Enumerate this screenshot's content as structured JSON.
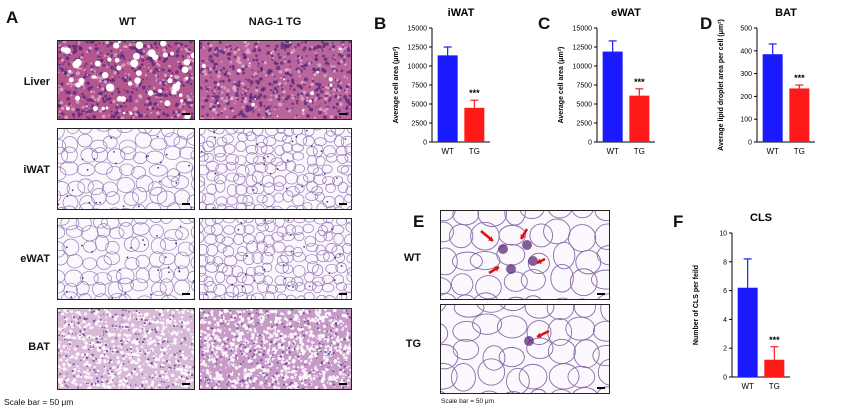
{
  "panel_a": {
    "letter": "A",
    "columns": [
      "WT",
      "NAG-1 TG"
    ],
    "rows": [
      {
        "label": "Liver",
        "tissue": "liver"
      },
      {
        "label": "iWAT",
        "tissue": "adipose"
      },
      {
        "label": "eWAT",
        "tissue": "adipose"
      },
      {
        "label": "BAT",
        "tissue": "bat"
      }
    ],
    "scale_note": "Scale bar = 50 μm"
  },
  "panel_e": {
    "letter": "E",
    "rows": [
      "WT",
      "TG"
    ],
    "scale_note": "Scale bar = 50 μm"
  },
  "colors": {
    "wt": "#1a1aff",
    "tg": "#ff1a1a",
    "stain_bg": "#f4eef8",
    "stain_line": "#9a7ab8"
  },
  "chart_data": [
    {
      "letter": "B",
      "type": "bar",
      "title": "iWAT",
      "categories": [
        "WT",
        "TG"
      ],
      "values": [
        11400,
        4500
      ],
      "errors": [
        1100,
        1000
      ],
      "ylabel": "Average cell area (μm²)",
      "ylim": [
        0,
        15000
      ],
      "yticks": [
        0,
        2500,
        5000,
        7500,
        10000,
        12500,
        15000
      ],
      "annotations": [
        {
          "category": "TG",
          "text": "***"
        }
      ]
    },
    {
      "letter": "C",
      "type": "bar",
      "title": "eWAT",
      "categories": [
        "WT",
        "TG"
      ],
      "values": [
        11900,
        6100
      ],
      "errors": [
        1400,
        900
      ],
      "ylabel": "Average cell area (μm²)",
      "ylim": [
        0,
        15000
      ],
      "yticks": [
        0,
        2500,
        5000,
        7500,
        10000,
        12500,
        15000
      ],
      "annotations": [
        {
          "category": "TG",
          "text": "***"
        }
      ]
    },
    {
      "letter": "D",
      "type": "bar",
      "title": "BAT",
      "categories": [
        "WT",
        "TG"
      ],
      "values": [
        385,
        235
      ],
      "errors": [
        45,
        15
      ],
      "ylabel": "Average lipid droplet area per cell (μm²)",
      "ylim": [
        0,
        500
      ],
      "yticks": [
        0,
        100,
        200,
        300,
        400,
        500
      ],
      "annotations": [
        {
          "category": "TG",
          "text": "***"
        }
      ]
    },
    {
      "letter": "F",
      "type": "bar",
      "title": "CLS",
      "categories": [
        "WT",
        "TG"
      ],
      "values": [
        6.2,
        1.2
      ],
      "errors": [
        2.0,
        0.9
      ],
      "ylabel": "Number of CLS per feild",
      "ylim": [
        0,
        10
      ],
      "yticks": [
        0,
        2,
        4,
        6,
        8,
        10
      ],
      "annotations": [
        {
          "category": "TG",
          "text": "***"
        }
      ]
    }
  ]
}
